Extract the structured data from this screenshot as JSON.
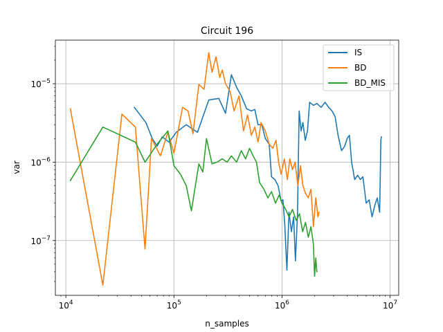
{
  "chart_data": {
    "type": "line",
    "title": "Circuit 196",
    "xlabel": "n_samples",
    "ylabel": "var",
    "xscale": "log",
    "yscale": "log",
    "xlim": [
      8000,
      12000000
    ],
    "ylim": [
      2e-08,
      3.6e-05
    ],
    "grid": true,
    "legend_position": "top-right",
    "xticks": [
      {
        "value": 10000,
        "base": "10",
        "exp": "4"
      },
      {
        "value": 100000,
        "base": "10",
        "exp": "5"
      },
      {
        "value": 1000000,
        "base": "10",
        "exp": "6"
      },
      {
        "value": 10000000,
        "base": "10",
        "exp": "7"
      }
    ],
    "yticks": [
      {
        "value": 1e-07,
        "base": "10",
        "exp": "−7"
      },
      {
        "value": 1e-06,
        "base": "10",
        "exp": "−6"
      },
      {
        "value": 1e-05,
        "base": "10",
        "exp": "−5"
      }
    ],
    "series": [
      {
        "name": "IS",
        "color": "#1f77b4",
        "points": [
          [
            43000,
            5e-06
          ],
          [
            55000,
            3.2e-06
          ],
          [
            63000,
            2e-06
          ],
          [
            70000,
            1.6e-06
          ],
          [
            78000,
            2.1e-06
          ],
          [
            90000,
            1.8e-06
          ],
          [
            105000,
            2.4e-06
          ],
          [
            130000,
            3e-06
          ],
          [
            165000,
            2.4e-06
          ],
          [
            210000,
            6.2e-06
          ],
          [
            260000,
            6.5e-06
          ],
          [
            300000,
            4.2e-06
          ],
          [
            340000,
            1.3e-05
          ],
          [
            380000,
            9e-06
          ],
          [
            420000,
            7e-06
          ],
          [
            470000,
            4.8e-06
          ],
          [
            520000,
            4.5e-06
          ],
          [
            560000,
            4.7e-06
          ],
          [
            600000,
            3e-06
          ],
          [
            650000,
            3e-06
          ],
          [
            700000,
            2e-06
          ],
          [
            760000,
            1.7e-06
          ],
          [
            800000,
            6.5e-07
          ],
          [
            860000,
            6e-07
          ],
          [
            920000,
            5e-07
          ],
          [
            980000,
            3.2e-07
          ],
          [
            1020000,
            3.3e-07
          ],
          [
            1060000,
            1.6e-07
          ],
          [
            1110000,
            4.2e-08
          ],
          [
            1160000,
            2.3e-07
          ],
          [
            1220000,
            1.3e-07
          ],
          [
            1280000,
            2e-07
          ],
          [
            1330000,
            5.5e-08
          ],
          [
            1390000,
            2.2e-07
          ],
          [
            1440000,
            4.5e-06
          ],
          [
            1500000,
            2.5e-06
          ],
          [
            1560000,
            3.2e-06
          ],
          [
            1640000,
            1.9e-06
          ],
          [
            1720000,
            2.5e-06
          ],
          [
            1800000,
            5.8e-06
          ],
          [
            1950000,
            5.3e-06
          ],
          [
            2100000,
            5.6e-06
          ],
          [
            2300000,
            5e-06
          ],
          [
            2500000,
            5.8e-06
          ],
          [
            2700000,
            5e-06
          ],
          [
            2900000,
            4.5e-06
          ],
          [
            3100000,
            3.8e-06
          ],
          [
            3300000,
            2.2e-06
          ],
          [
            3550000,
            1.4e-06
          ],
          [
            3800000,
            1.6e-06
          ],
          [
            4000000,
            2e-06
          ],
          [
            4200000,
            2.2e-06
          ],
          [
            4400000,
            1e-06
          ],
          [
            4700000,
            6e-07
          ],
          [
            5000000,
            6.8e-07
          ],
          [
            5300000,
            6e-07
          ],
          [
            5600000,
            6.5e-07
          ],
          [
            6000000,
            3e-07
          ],
          [
            6400000,
            3.3e-07
          ],
          [
            6800000,
            2e-07
          ],
          [
            7200000,
            2.8e-07
          ],
          [
            7600000,
            3.5e-07
          ],
          [
            8000000,
            2.3e-07
          ],
          [
            8200000,
            1.9e-06
          ],
          [
            8300000,
            2.1e-06
          ]
        ]
      },
      {
        "name": "BD",
        "color": "#ff7f0e",
        "points": [
          [
            11000,
            4.8e-06
          ],
          [
            22000,
            2.7e-08
          ],
          [
            33000,
            4.1e-06
          ],
          [
            44000,
            2.8e-06
          ],
          [
            54000,
            7.8e-08
          ],
          [
            62000,
            2e-06
          ],
          [
            75000,
            1.2e-06
          ],
          [
            88000,
            2.4e-06
          ],
          [
            100000,
            1.3e-06
          ],
          [
            120000,
            5e-06
          ],
          [
            135000,
            4.5e-06
          ],
          [
            150000,
            2.3e-06
          ],
          [
            170000,
            9.8e-06
          ],
          [
            190000,
            8.5e-06
          ],
          [
            210000,
            2.5e-05
          ],
          [
            225000,
            1.4e-05
          ],
          [
            245000,
            2.2e-05
          ],
          [
            265000,
            1.2e-05
          ],
          [
            280000,
            1.5e-05
          ],
          [
            300000,
            1e-05
          ],
          [
            330000,
            8e-06
          ],
          [
            360000,
            4.5e-06
          ],
          [
            400000,
            7e-06
          ],
          [
            440000,
            2.5e-06
          ],
          [
            480000,
            4e-06
          ],
          [
            520000,
            2.2e-06
          ],
          [
            560000,
            2.8e-06
          ],
          [
            600000,
            1.8e-06
          ],
          [
            640000,
            3.2e-06
          ],
          [
            700000,
            2.5e-06
          ],
          [
            760000,
            1.7e-06
          ],
          [
            820000,
            1.5e-06
          ],
          [
            880000,
            1.9e-06
          ],
          [
            930000,
            1e-06
          ],
          [
            980000,
            7e-07
          ],
          [
            1050000,
            1.1e-06
          ],
          [
            1120000,
            6e-07
          ],
          [
            1180000,
            1.1e-06
          ],
          [
            1250000,
            8e-07
          ],
          [
            1320000,
            1e-06
          ],
          [
            1400000,
            5e-07
          ],
          [
            1480000,
            9e-07
          ],
          [
            1560000,
            5e-07
          ],
          [
            1650000,
            4e-07
          ],
          [
            1750000,
            3.5e-07
          ],
          [
            1850000,
            4.5e-07
          ],
          [
            1950000,
            1.5e-07
          ],
          [
            2050000,
            3.5e-07
          ],
          [
            2150000,
            2e-07
          ],
          [
            2200000,
            2.3e-07
          ]
        ]
      },
      {
        "name": "BD_MIS",
        "color": "#2ca02c",
        "points": [
          [
            11000,
            5.8e-07
          ],
          [
            22000,
            2.8e-06
          ],
          [
            44000,
            1.8e-06
          ],
          [
            54000,
            1e-06
          ],
          [
            70000,
            1.7e-06
          ],
          [
            88000,
            2.5e-06
          ],
          [
            100000,
            9e-07
          ],
          [
            115000,
            7e-07
          ],
          [
            130000,
            5e-07
          ],
          [
            145000,
            2.4e-07
          ],
          [
            170000,
            9.5e-07
          ],
          [
            185000,
            7.5e-07
          ],
          [
            200000,
            2e-06
          ],
          [
            225000,
            9.5e-07
          ],
          [
            250000,
            1e-06
          ],
          [
            280000,
            1.1e-06
          ],
          [
            310000,
            1e-06
          ],
          [
            340000,
            1.2e-06
          ],
          [
            380000,
            1e-06
          ],
          [
            420000,
            1.4e-06
          ],
          [
            460000,
            1.1e-06
          ],
          [
            500000,
            1.5e-06
          ],
          [
            540000,
            1.2e-06
          ],
          [
            580000,
            1e-06
          ],
          [
            620000,
            5.5e-07
          ],
          [
            680000,
            4.5e-07
          ],
          [
            740000,
            3.5e-07
          ],
          [
            800000,
            4.2e-07
          ],
          [
            870000,
            3e-07
          ],
          [
            940000,
            3.8e-07
          ],
          [
            1000000,
            3e-07
          ],
          [
            1080000,
            2.5e-07
          ],
          [
            1160000,
            2e-07
          ],
          [
            1250000,
            2.5e-07
          ],
          [
            1350000,
            1.8e-07
          ],
          [
            1450000,
            2.2e-07
          ],
          [
            1550000,
            1.3e-07
          ],
          [
            1650000,
            1.7e-07
          ],
          [
            1750000,
            1.1e-07
          ],
          [
            1850000,
            1.5e-07
          ],
          [
            1950000,
            9e-08
          ],
          [
            2000000,
            3.5e-08
          ],
          [
            2050000,
            6e-08
          ],
          [
            2100000,
            4e-08
          ]
        ]
      }
    ]
  }
}
